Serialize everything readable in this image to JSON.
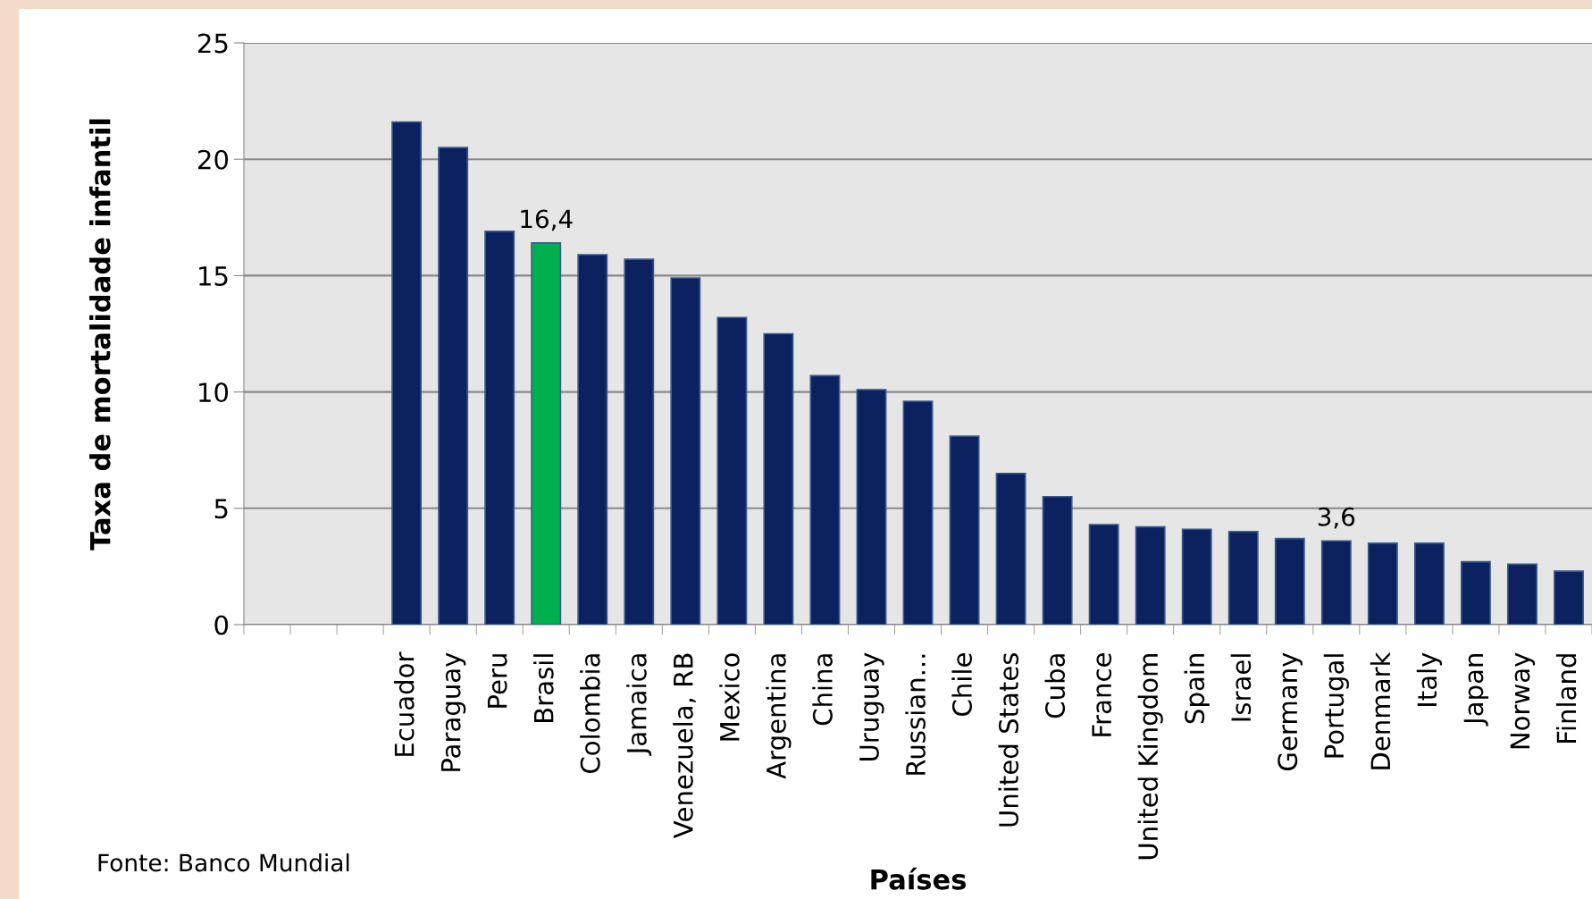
{
  "chart_data": {
    "type": "bar",
    "xlabel": "Países",
    "ylabel": "Taxa de mortalidade infantil",
    "categories": [
      null,
      null,
      null,
      "Ecuador",
      "Paraguay",
      "Peru",
      "Brasil",
      "Colombia",
      "Jamaica",
      "Venezuela, RB",
      "Mexico",
      "Argentina",
      "China",
      "Uruguay",
      "Russian...",
      "Chile",
      "United States",
      "Cuba",
      "France",
      "United Kingdom",
      "Spain",
      "Israel",
      "Germany",
      "Portugal",
      "Denmark",
      "Italy",
      "Japan",
      "Norway",
      "Finland"
    ],
    "values": [
      null,
      null,
      null,
      21.6,
      20.5,
      16.9,
      16.4,
      15.9,
      15.7,
      14.9,
      13.2,
      12.5,
      10.7,
      10.1,
      9.6,
      8.1,
      6.5,
      5.5,
      4.3,
      4.2,
      4.1,
      4.0,
      3.7,
      3.6,
      3.5,
      3.5,
      2.7,
      2.6,
      2.3
    ],
    "colors": [
      "#0b2160",
      "#0b2160",
      "#0b2160",
      "#0b2160",
      "#0b2160",
      "#0b2160",
      "#00b050",
      "#0b2160",
      "#0b2160",
      "#0b2160",
      "#0b2160",
      "#0b2160",
      "#0b2160",
      "#0b2160",
      "#0b2160",
      "#0b2160",
      "#0b2160",
      "#0b2160",
      "#0b2160",
      "#0b2160",
      "#0b2160",
      "#0b2160",
      "#0b2160",
      "#0b2160",
      "#0b2160",
      "#0b2160",
      "#0b2160",
      "#0b2160",
      "#0b2160"
    ],
    "value_labels": [
      null,
      null,
      null,
      null,
      null,
      null,
      "16,4",
      null,
      null,
      null,
      null,
      null,
      null,
      null,
      null,
      null,
      null,
      null,
      null,
      null,
      null,
      null,
      null,
      "3,6",
      null,
      null,
      null,
      null,
      null
    ],
    "ylim": [
      0,
      25
    ],
    "yticks": [
      0,
      5,
      10,
      15,
      20,
      25
    ],
    "grid": "y",
    "legend": false,
    "annotations": [
      "Fonte: Banco Mundial"
    ]
  }
}
